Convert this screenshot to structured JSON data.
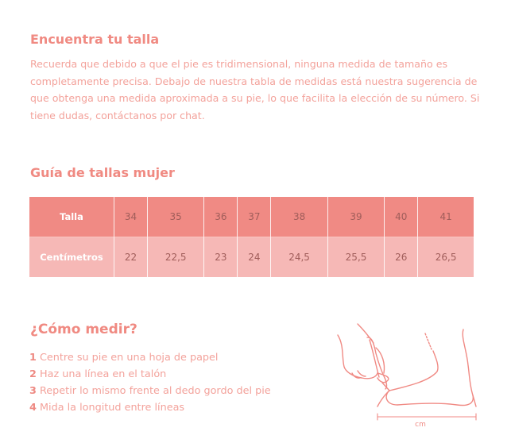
{
  "intro": {
    "title": "Encuentra tu talla",
    "text": "Recuerda que debido a que el pie es tridimensional, ninguna medida de tamaño es completamente precisa. Debajo de nuestra tabla de medidas está nuestra sugerencia de que obtenga una medida aproximada a su pie, lo que facilita la elección de su número. Si tiene dudas, contáctanos por chat."
  },
  "size_guide": {
    "title": "Guía de tallas mujer",
    "rows": [
      {
        "label": "Talla",
        "values": [
          "34",
          "35",
          "36",
          "37",
          "38",
          "39",
          "40",
          "41"
        ]
      },
      {
        "label": "Centímetros",
        "values": [
          "22",
          "22,5",
          "23",
          "24",
          "24,5",
          "25,5",
          "26",
          "26,5"
        ]
      }
    ]
  },
  "how_to": {
    "title": "¿Cómo medir?",
    "steps": [
      {
        "num": "1",
        "text": "Centre su pie en una hoja de papel"
      },
      {
        "num": "2",
        "text": "Haz una línea en el talón"
      },
      {
        "num": "3",
        "text": "Repetir lo mismo frente al dedo gordo del pie"
      },
      {
        "num": "4",
        "text": "Mida la longitud entre líneas"
      }
    ],
    "illustration_unit": "cm"
  },
  "colors": {
    "accent": "#f08a82",
    "text": "#f3a29b",
    "header_row": "#f08a84",
    "second_row": "#f6b8b6",
    "numbers": "#a05d5a"
  }
}
